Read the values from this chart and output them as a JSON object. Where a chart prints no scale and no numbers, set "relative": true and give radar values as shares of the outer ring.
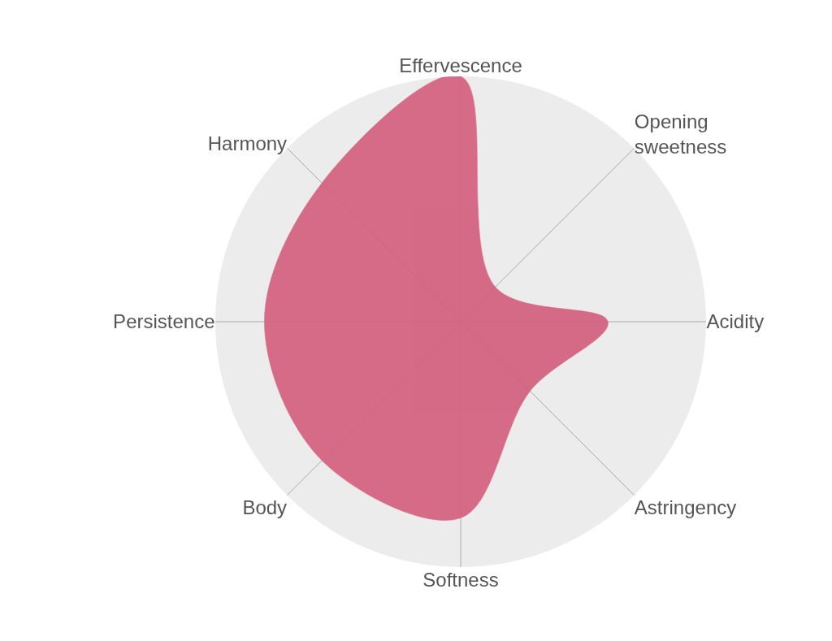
{
  "chart_data": {
    "type": "radar",
    "relative": true,
    "grid": true,
    "categories": [
      "Effervescence",
      "Opening\nsweetness",
      "Acidity",
      "Astringency",
      "Softness",
      "Body",
      "Persistence",
      "Harmony"
    ],
    "series": [
      {
        "color": "#d4607f",
        "values": [
          1.0,
          0.2,
          0.6,
          0.4,
          0.8,
          0.8,
          0.8,
          0.8
        ]
      }
    ]
  }
}
